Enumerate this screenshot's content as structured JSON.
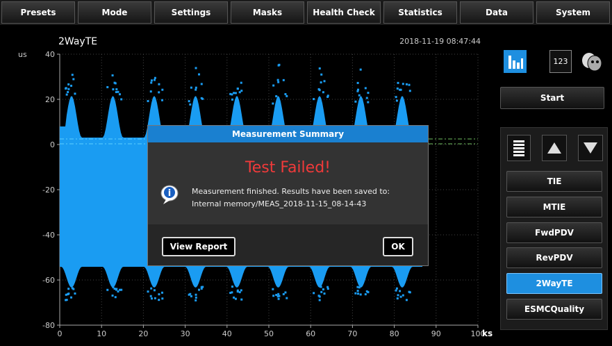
{
  "menu": [
    "Presets",
    "Mode",
    "Settings",
    "Masks",
    "Health Check",
    "Statistics",
    "Data",
    "System"
  ],
  "plot": {
    "title": "2WayTE",
    "timestamp": "2018-11-19 08:47:44",
    "y_unit": "us",
    "x_unit": "ks",
    "xlim": [
      0,
      100
    ],
    "ylim": [
      -80,
      40
    ],
    "yticks": [
      40,
      20,
      0,
      -20,
      -40,
      -60,
      -80
    ],
    "xticks": [
      0,
      10,
      20,
      30,
      40,
      50,
      60,
      70,
      80,
      90,
      100
    ]
  },
  "side": {
    "counter_button": "123",
    "start": "Start",
    "measurements": [
      {
        "label": "TIE"
      },
      {
        "label": "MTIE"
      },
      {
        "label": "FwdPDV"
      },
      {
        "label": "RevPDV"
      },
      {
        "label": "2WayTE",
        "selected": true
      },
      {
        "label": "ESMCQuality"
      }
    ]
  },
  "dialog": {
    "title": "Measurement Summary",
    "status": "Test Failed!",
    "message": [
      "Measurement finished. Results have been saved to:",
      "Internal memory/MEAS_2018-11-15_08-14-43"
    ],
    "buttons": [
      "View Report",
      "OK"
    ]
  }
}
